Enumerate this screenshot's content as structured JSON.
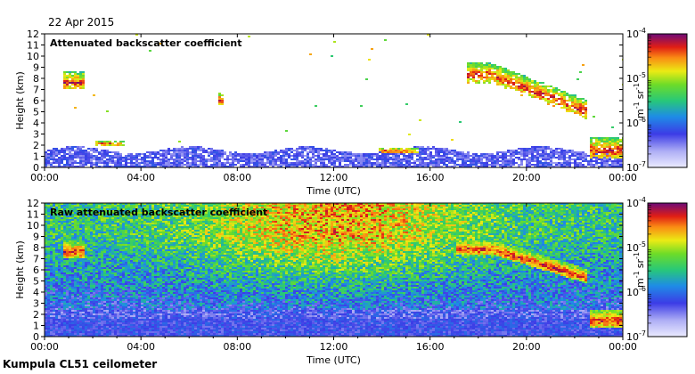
{
  "date": "22 Apr 2015",
  "instrument": "Kumpula CL51 ceilometer",
  "colors": {
    "background": "#ffffff",
    "frame": "#000000"
  },
  "chart_data": [
    {
      "type": "heatmap",
      "title": "Attenuated backscatter coefficient",
      "xlabel": "Time (UTC)",
      "ylabel": "Height (km)",
      "xticks": [
        "00:00",
        "04:00",
        "08:00",
        "12:00",
        "16:00",
        "20:00",
        "00:00"
      ],
      "xlim_hours": [
        0,
        24
      ],
      "ylim_km": [
        0,
        12
      ],
      "yticks": [
        "0",
        "1",
        "2",
        "3",
        "4",
        "5",
        "6",
        "7",
        "8",
        "9",
        "10",
        "11",
        "12"
      ],
      "colorbar": {
        "scale": "log",
        "range": [
          1e-07,
          0.0001
        ],
        "ticks": [
          "10",
          "10",
          "10",
          "10"
        ],
        "tick_exponents": [
          "-7",
          "-6",
          "-5",
          "-4"
        ],
        "unit_base": [
          "m",
          "sr"
        ],
        "unit_exponents": [
          "-1",
          "-1"
        ]
      },
      "features": [
        {
          "kind": "boundary_layer",
          "from_h": 0,
          "to_h": 24,
          "top_km": 1.5
        },
        {
          "kind": "cloud",
          "from_h": 0.7,
          "to_h": 1.6,
          "base_km": 7.0,
          "top_km": 8.5
        },
        {
          "kind": "cloud",
          "from_h": 2.0,
          "to_h": 3.3,
          "base_km": 1.9,
          "top_km": 2.3
        },
        {
          "kind": "cloud",
          "from_h": 7.2,
          "to_h": 7.4,
          "base_km": 5.6,
          "top_km": 6.6
        },
        {
          "kind": "cloud",
          "from_h": 13.8,
          "to_h": 15.5,
          "base_km": 1.2,
          "top_km": 1.7
        },
        {
          "kind": "cloud",
          "from_h": 17.5,
          "to_h": 22.5,
          "base_km": 4.5,
          "top_km": 9.3
        },
        {
          "kind": "cloud",
          "from_h": 22.6,
          "to_h": 24,
          "base_km": 0.8,
          "top_km": 2.6
        }
      ]
    },
    {
      "type": "heatmap",
      "title": "Raw attenuated backscatter coefficient",
      "xlabel": "Time (UTC)",
      "ylabel": "Height (km)",
      "xticks": [
        "00:00",
        "04:00",
        "08:00",
        "12:00",
        "16:00",
        "20:00",
        "00:00"
      ],
      "xlim_hours": [
        0,
        24
      ],
      "ylim_km": [
        0,
        12
      ],
      "yticks": [
        "0",
        "1",
        "2",
        "3",
        "4",
        "5",
        "6",
        "7",
        "8",
        "9",
        "10",
        "11",
        "12"
      ],
      "colorbar": {
        "scale": "log",
        "range": [
          1e-07,
          0.0001
        ],
        "ticks": [
          "10",
          "10",
          "10",
          "10"
        ],
        "tick_exponents": [
          "-7",
          "-6",
          "-5",
          "-4"
        ],
        "unit_base": [
          "m",
          "sr"
        ],
        "unit_exponents": [
          "-1",
          "-1"
        ]
      },
      "features": [
        {
          "kind": "noise_field",
          "from_h": 0,
          "to_h": 24
        },
        {
          "kind": "cloud",
          "from_h": 0.7,
          "to_h": 1.6,
          "base_km": 7.0,
          "top_km": 8.5
        },
        {
          "kind": "cloud",
          "from_h": 17.0,
          "to_h": 22.5,
          "base_km": 4.5,
          "top_km": 9.0
        },
        {
          "kind": "cloud",
          "from_h": 22.6,
          "to_h": 24,
          "base_km": 0.8,
          "top_km": 2.4
        }
      ]
    }
  ]
}
